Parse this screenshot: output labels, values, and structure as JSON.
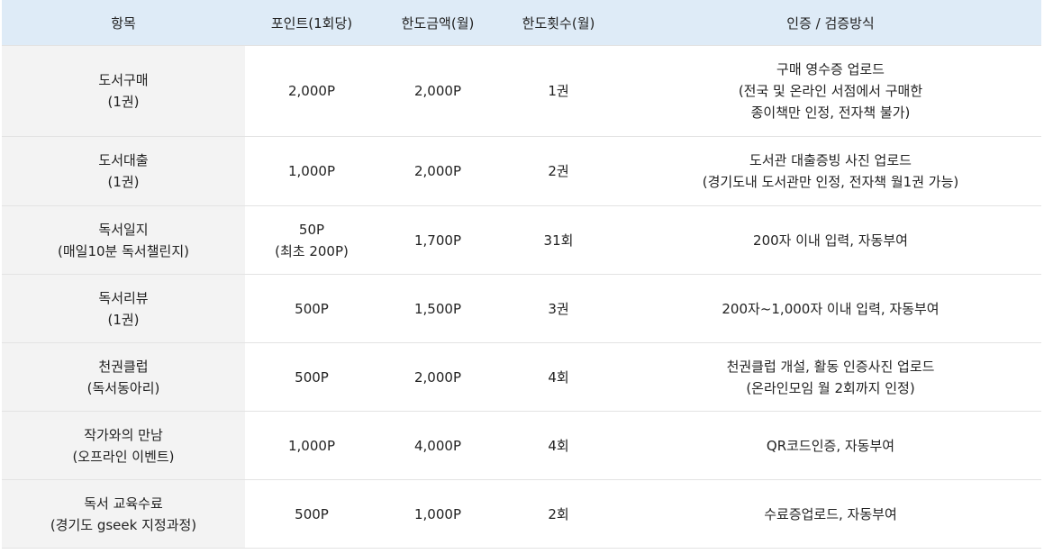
{
  "table": {
    "headers": [
      "항목",
      "포인트(1회당)",
      "한도금액(월)",
      "한도횟수(월)",
      "인증 / 검증방식"
    ],
    "rows": [
      {
        "item": [
          "도서구매",
          "(1권)"
        ],
        "points": [
          "2,000P"
        ],
        "limit_amount": "2,000P",
        "limit_count": "1권",
        "method": [
          "구매 영수증 업로드",
          "(전국 및 온라인 서점에서 구매한",
          "종이책만 인정, 전자책 불가)"
        ]
      },
      {
        "item": [
          "도서대출",
          "(1권)"
        ],
        "points": [
          "1,000P"
        ],
        "limit_amount": "2,000P",
        "limit_count": "2권",
        "method": [
          "도서관 대출증빙 사진 업로드",
          "(경기도내 도서관만 인정, 전자책 월1권 가능)"
        ]
      },
      {
        "item": [
          "독서일지",
          "(매일10분 독서챌린지)"
        ],
        "points": [
          "50P",
          "(최초 200P)"
        ],
        "limit_amount": "1,700P",
        "limit_count": "31회",
        "method": [
          "200자 이내 입력, 자동부여"
        ]
      },
      {
        "item": [
          "독서리뷰",
          "(1권)"
        ],
        "points": [
          "500P"
        ],
        "limit_amount": "1,500P",
        "limit_count": "3권",
        "method": [
          "200자~1,000자 이내 입력, 자동부여"
        ]
      },
      {
        "item": [
          "천권클럽",
          "(독서동아리)"
        ],
        "points": [
          "500P"
        ],
        "limit_amount": "2,000P",
        "limit_count": "4회",
        "method": [
          "천권클럽 개설, 활동 인증사진 업로드",
          "(온라인모임 월 2회까지 인정)"
        ]
      },
      {
        "item": [
          "작가와의 만남",
          "(오프라인 이벤트)"
        ],
        "points": [
          "1,000P"
        ],
        "limit_amount": "4,000P",
        "limit_count": "4회",
        "method": [
          "QR코드인증, 자동부여"
        ]
      },
      {
        "item": [
          "독서 교육수료",
          "(경기도 gseek 지정과정)"
        ],
        "points": [
          "500P"
        ],
        "limit_amount": "1,000P",
        "limit_count": "2회",
        "method": [
          "수료증업로드, 자동부여"
        ]
      }
    ]
  }
}
